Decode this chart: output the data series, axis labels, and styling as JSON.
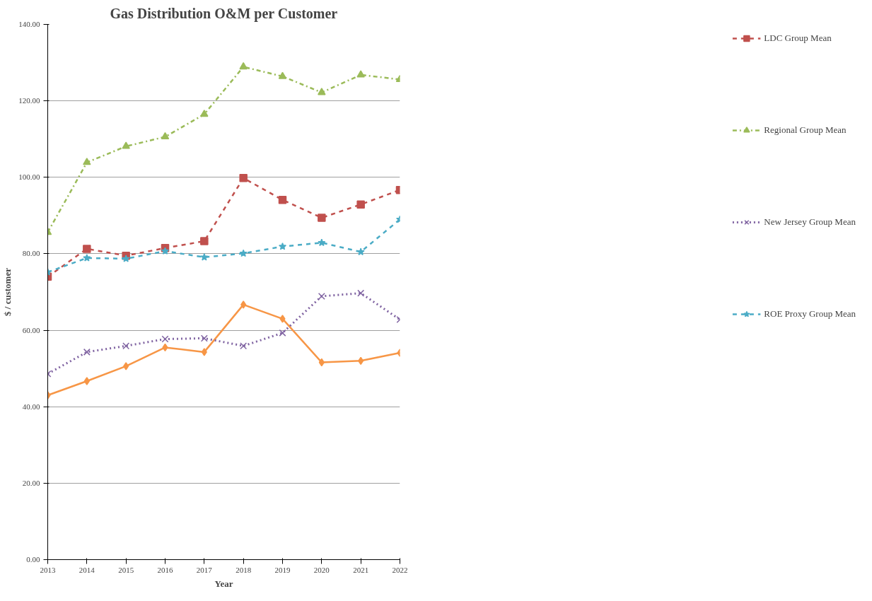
{
  "chart_data": {
    "type": "line",
    "title": "Gas Distribution O&M per Customer",
    "xlabel": "Year",
    "ylabel": "$ / customer",
    "x": [
      2013,
      2014,
      2015,
      2016,
      2017,
      2018,
      2019,
      2020,
      2021,
      2022
    ],
    "xlim": [
      2013,
      2022
    ],
    "xticks": [
      2013,
      2014,
      2015,
      2016,
      2017,
      2018,
      2019,
      2020,
      2021,
      2022
    ],
    "ylim": [
      0,
      140
    ],
    "yticks": [
      {
        "value": 0,
        "label": "0.00"
      },
      {
        "value": 20,
        "label": "20.00"
      },
      {
        "value": 40,
        "label": "40.00"
      },
      {
        "value": 60,
        "label": "60.00"
      },
      {
        "value": 80,
        "label": "80.00"
      },
      {
        "value": 100,
        "label": "100.00"
      },
      {
        "value": 120,
        "label": "120.00"
      },
      {
        "value": 140,
        "label": "140.00"
      }
    ],
    "grid": "y",
    "legend": "right",
    "series": [
      {
        "color": "#f79646",
        "marker": "diamond",
        "line_style": "solid",
        "values": [
          43.0,
          46.7,
          50.6,
          55.5,
          54.3,
          66.7,
          63.0,
          51.6,
          52.0,
          54.1
        ]
      },
      {
        "name": "LDC Group Mean",
        "color": "#c0504d",
        "marker": "square",
        "line_style": "dashed",
        "values": [
          74.0,
          81.3,
          79.5,
          81.5,
          83.3,
          99.8,
          94.1,
          89.4,
          92.9,
          96.7
        ]
      },
      {
        "name": "Regional Group Mean",
        "color": "#9bbb59",
        "marker": "triangle",
        "line_style": "dashdot",
        "values": [
          85.6,
          103.9,
          108.1,
          110.6,
          116.5,
          128.9,
          126.4,
          122.2,
          126.8,
          125.6
        ]
      },
      {
        "name": "New Jersey Group Mean",
        "color": "#8064a2",
        "marker": "cross",
        "line_style": "dotted",
        "values": [
          48.6,
          54.3,
          55.9,
          57.7,
          57.9,
          55.9,
          59.3,
          68.9,
          69.7,
          62.8
        ]
      },
      {
        "name": "ROE Proxy Group Mean",
        "color": "#4bacc6",
        "marker": "star",
        "line_style": "dashed",
        "values": [
          75.2,
          78.9,
          78.7,
          80.7,
          79.1,
          80.1,
          81.9,
          82.9,
          80.5,
          89.0
        ]
      }
    ]
  }
}
